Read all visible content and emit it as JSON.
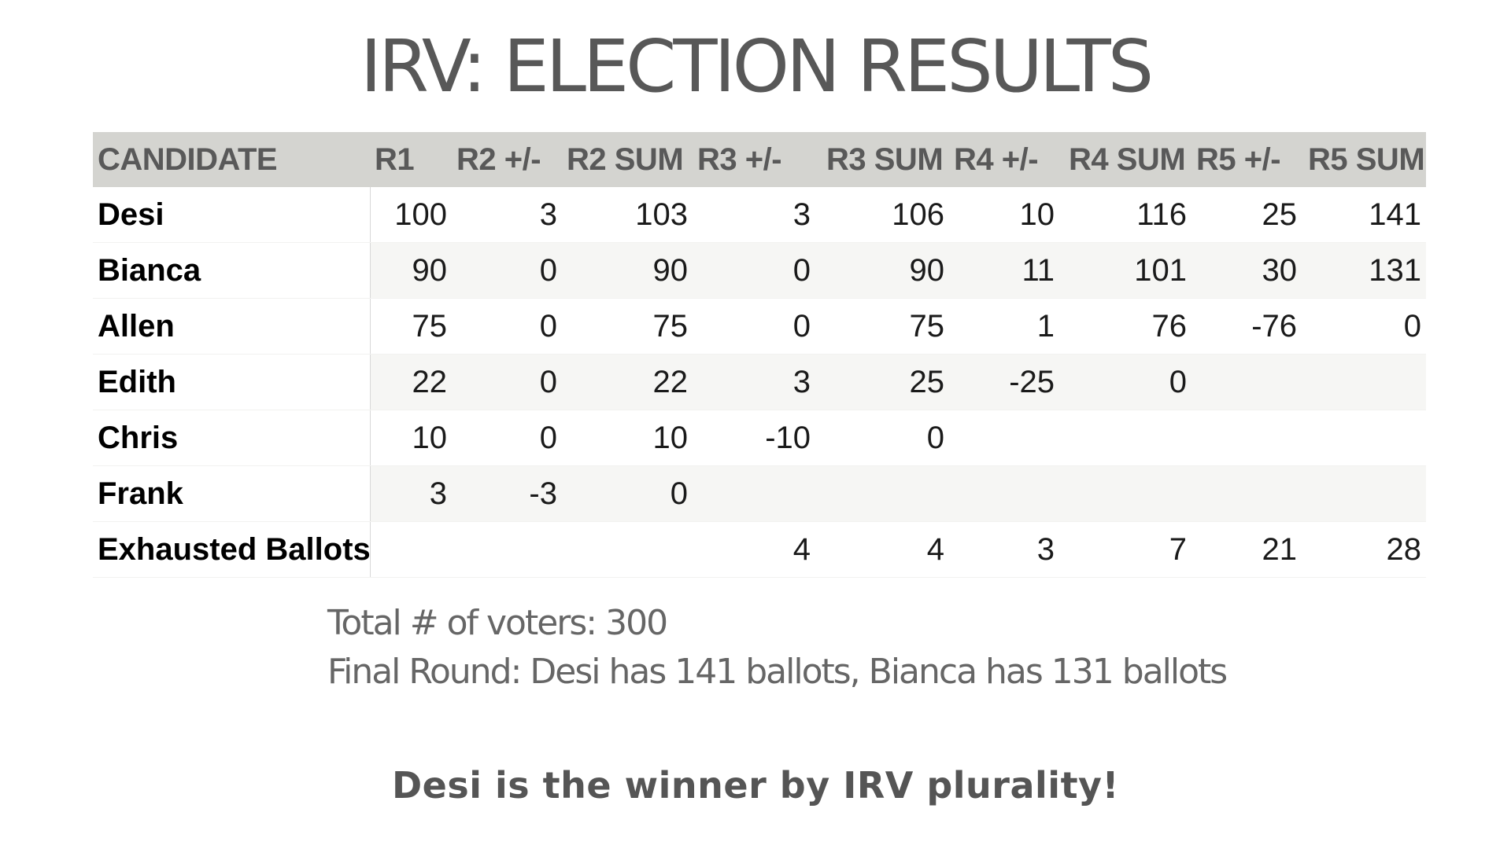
{
  "slide": {
    "title": "IRV: ELECTION RESULTS",
    "summary_voters": "Total # of voters: 300",
    "summary_final": "Final Round: Desi has 141 ballots, Bianca has 131 ballots",
    "winner": "Desi is the winner by IRV plurality!"
  },
  "table": {
    "headers": [
      "CANDIDATE",
      "R1",
      "R2 +/-",
      "R2 SUM",
      "R3 +/-",
      "R3 SUM",
      "R4 +/-",
      "R4 SUM",
      "R5 +/-",
      "R5 SUM"
    ],
    "rows": [
      [
        "Desi",
        "100",
        "3",
        "103",
        "3",
        "106",
        "10",
        "116",
        "25",
        "141"
      ],
      [
        "Bianca",
        "90",
        "0",
        "90",
        "0",
        "90",
        "11",
        "101",
        "30",
        "131"
      ],
      [
        "Allen",
        "75",
        "0",
        "75",
        "0",
        "75",
        "1",
        "76",
        "-76",
        "0"
      ],
      [
        "Edith",
        "22",
        "0",
        "22",
        "3",
        "25",
        "-25",
        "0",
        "",
        ""
      ],
      [
        "Chris",
        "10",
        "0",
        "10",
        "-10",
        "0",
        "",
        "",
        "",
        ""
      ],
      [
        "Frank",
        "3",
        "-3",
        "0",
        "",
        "",
        "",
        "",
        "",
        ""
      ],
      [
        "Exhausted Ballots",
        "",
        "",
        "",
        "4",
        "4",
        "3",
        "7",
        "21",
        "28"
      ]
    ]
  }
}
